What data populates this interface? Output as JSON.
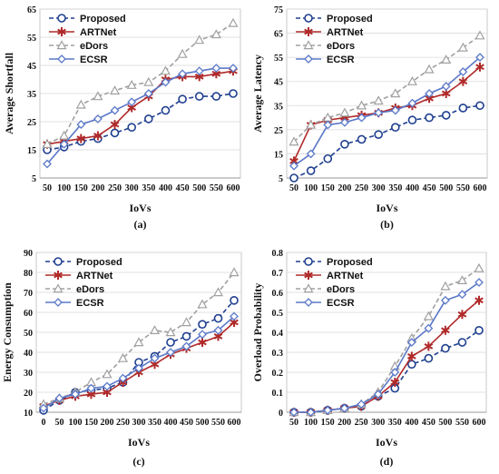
{
  "chart_data": [
    {
      "type": "line",
      "panel_label": "(a)",
      "xlabel": "IoVs",
      "ylabel": "Average Shortfall",
      "x": [
        50,
        100,
        150,
        200,
        250,
        300,
        350,
        400,
        450,
        500,
        550,
        600
      ],
      "x_tick_labels": [
        "50",
        "100",
        "150",
        "200",
        "250",
        "300",
        "350",
        "400",
        "450",
        "500",
        "550",
        "600"
      ],
      "ylim": [
        5,
        65
      ],
      "yticks": [
        5,
        15,
        25,
        35,
        45,
        55,
        65
      ],
      "legend_position": "top-left",
      "series": [
        {
          "name": "Proposed",
          "color": "#1f3f8f",
          "marker": "circle",
          "dash": "dashed",
          "values": [
            15,
            16,
            18,
            19,
            21,
            23,
            26,
            29,
            33,
            34,
            34,
            35
          ]
        },
        {
          "name": "ARTNet",
          "color": "#b02a2a",
          "marker": "star",
          "dash": "solid",
          "values": [
            17,
            18,
            19,
            20,
            24,
            30,
            34,
            40,
            41,
            41,
            42,
            43
          ]
        },
        {
          "name": "eDors",
          "color": "#a0a0a0",
          "marker": "triangle",
          "dash": "dashed",
          "values": [
            17,
            20,
            31,
            34,
            36,
            38,
            39,
            43,
            49,
            54,
            56,
            60
          ]
        },
        {
          "name": "ECSR",
          "color": "#5a78c8",
          "marker": "diamond",
          "dash": "solid",
          "values": [
            10,
            17,
            24,
            26,
            29,
            32,
            35,
            39,
            42,
            43,
            44,
            44
          ]
        }
      ]
    },
    {
      "type": "line",
      "panel_label": "(b)",
      "xlabel": "IoVs",
      "ylabel": "Average Latency",
      "x": [
        50,
        100,
        150,
        200,
        250,
        300,
        350,
        400,
        450,
        500,
        550,
        600
      ],
      "x_tick_labels": [
        "50",
        "100",
        "150",
        "200",
        "250",
        "300",
        "350",
        "400",
        "450",
        "500",
        "550",
        "600"
      ],
      "ylim": [
        5,
        75
      ],
      "yticks": [
        5,
        15,
        25,
        35,
        45,
        55,
        65,
        75
      ],
      "legend_position": "top-left",
      "series": [
        {
          "name": "Proposed",
          "color": "#1f3f8f",
          "marker": "circle",
          "dash": "dashed",
          "values": [
            5,
            8,
            13,
            19,
            21,
            23,
            26,
            29,
            30,
            31,
            34,
            35
          ]
        },
        {
          "name": "ARTNet",
          "color": "#b02a2a",
          "marker": "star",
          "dash": "solid",
          "values": [
            12,
            27,
            29,
            30,
            31,
            32,
            34,
            35,
            38,
            40,
            45,
            51
          ]
        },
        {
          "name": "eDors",
          "color": "#a0a0a0",
          "marker": "triangle",
          "dash": "dashed",
          "values": [
            20,
            27,
            30,
            32,
            35,
            37,
            40,
            45,
            50,
            54,
            59,
            64
          ]
        },
        {
          "name": "ECSR",
          "color": "#5a78c8",
          "marker": "diamond",
          "dash": "solid",
          "values": [
            10,
            15,
            27,
            28,
            30,
            32,
            33,
            36,
            40,
            43,
            49,
            55
          ]
        }
      ]
    },
    {
      "type": "line",
      "panel_label": "(c)",
      "xlabel": "IoVs",
      "ylabel": "Energy Consumption",
      "x": [
        0,
        50,
        100,
        150,
        200,
        250,
        300,
        350,
        400,
        450,
        500,
        550,
        600
      ],
      "x_tick_labels": [
        "0",
        "50",
        "100",
        "150",
        "200",
        "250",
        "300",
        "350",
        "400",
        "450",
        "500",
        "550",
        "600"
      ],
      "ylim": [
        10,
        90
      ],
      "yticks": [
        10,
        20,
        30,
        40,
        50,
        60,
        70,
        80,
        90
      ],
      "legend_position": "top-left",
      "series": [
        {
          "name": "Proposed",
          "color": "#1f3f8f",
          "marker": "circle",
          "dash": "dashed",
          "values": [
            11,
            16,
            20,
            21,
            22,
            25,
            35,
            38,
            45,
            48,
            54,
            57,
            66
          ]
        },
        {
          "name": "ARTNet",
          "color": "#b02a2a",
          "marker": "star",
          "dash": "solid",
          "values": [
            13,
            16,
            18,
            19,
            20,
            25,
            30,
            34,
            39,
            42,
            45,
            48,
            55
          ]
        },
        {
          "name": "eDors",
          "color": "#a0a0a0",
          "marker": "triangle",
          "dash": "dashed",
          "values": [
            14,
            17,
            20,
            25,
            29,
            37,
            45,
            51,
            50,
            55,
            64,
            70,
            80
          ]
        },
        {
          "name": "ECSR",
          "color": "#5a78c8",
          "marker": "diamond",
          "dash": "solid",
          "values": [
            12,
            17,
            19,
            22,
            23,
            27,
            32,
            37,
            40,
            43,
            49,
            51,
            58
          ]
        }
      ]
    },
    {
      "type": "line",
      "panel_label": "(d)",
      "xlabel": "IoVs",
      "ylabel": "Overload Probability",
      "x": [
        50,
        100,
        150,
        200,
        250,
        300,
        350,
        400,
        450,
        500,
        550,
        600
      ],
      "x_tick_labels": [
        "50",
        "100",
        "150",
        "200",
        "250",
        "300",
        "350",
        "400",
        "450",
        "500",
        "550",
        "600"
      ],
      "ylim": [
        0,
        0.8
      ],
      "yticks": [
        0,
        0.1,
        0.2,
        0.3,
        0.4,
        0.5,
        0.6,
        0.7,
        0.8
      ],
      "legend_position": "top-left",
      "series": [
        {
          "name": "Proposed",
          "color": "#1f3f8f",
          "marker": "circle",
          "dash": "dashed",
          "values": [
            0,
            0,
            0.01,
            0.02,
            0.03,
            0.08,
            0.12,
            0.24,
            0.27,
            0.32,
            0.35,
            0.41
          ]
        },
        {
          "name": "ARTNet",
          "color": "#b02a2a",
          "marker": "star",
          "dash": "solid",
          "values": [
            0,
            0,
            0.01,
            0.02,
            0.03,
            0.08,
            0.15,
            0.28,
            0.33,
            0.41,
            0.49,
            0.56
          ]
        },
        {
          "name": "eDors",
          "color": "#a0a0a0",
          "marker": "triangle",
          "dash": "dashed",
          "values": [
            0,
            0,
            0.01,
            0.02,
            0.04,
            0.1,
            0.23,
            0.37,
            0.48,
            0.63,
            0.66,
            0.72
          ]
        },
        {
          "name": "ECSR",
          "color": "#5a78c8",
          "marker": "diamond",
          "dash": "solid",
          "values": [
            0,
            0,
            0.01,
            0.02,
            0.04,
            0.09,
            0.2,
            0.35,
            0.42,
            0.56,
            0.59,
            0.65
          ]
        }
      ]
    }
  ]
}
